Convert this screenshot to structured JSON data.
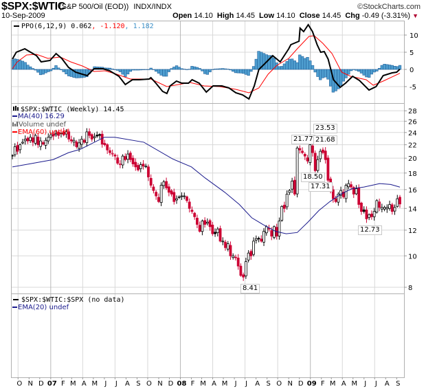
{
  "header": {
    "symbol": "$SPX:$WTIC",
    "description": "(S&P 500/Oil (EOD))",
    "exchange": "INDX/INDX",
    "brand": "©StockCharts.com",
    "date": "10-Sep-2009",
    "open_label": "Open",
    "open": "14.10",
    "high_label": "High",
    "high": "14.45",
    "low_label": "Low",
    "low": "14.10",
    "close_label": "Close",
    "close": "14.45",
    "chg_label": "Chg",
    "chg": "-0.49 (-3.31%)",
    "chg_icon": "down-triangle-icon"
  },
  "ppo_panel": {
    "legend_name": "PPO(6,12,9) 0.062",
    "legend_signal": ", -1.120",
    "legend_hist": ", 1.182",
    "ticks": [
      "10",
      "5",
      "0",
      "-5"
    ]
  },
  "price_panel": {
    "legend_price": "$SPX:$WTIC (Weekly) 14.45",
    "legend_ma": "MA(40) 16.29",
    "legend_volume": "Volume undef",
    "legend_ema": "EMA(60) undef",
    "ticks": [
      "28",
      "26",
      "24",
      "22",
      "20",
      "18",
      "16",
      "14",
      "12",
      "10",
      "8"
    ],
    "annotations": {
      "a1": "23.53",
      "a2": "21.77",
      "a3": "21.68",
      "a4": "18.50",
      "a5": "17.31",
      "a6": "12.73",
      "a7": "8.41"
    }
  },
  "bottom_panel": {
    "legend_ratio": "$SPX:$WTIC:$SPX (no data)",
    "legend_ema": "EMA(20) undef"
  },
  "x_axis": {
    "labels": [
      "O",
      "N",
      "D",
      "07",
      "F",
      "M",
      "A",
      "M",
      "J",
      "J",
      "A",
      "S",
      "O",
      "N",
      "D",
      "08",
      "F",
      "M",
      "A",
      "M",
      "J",
      "J",
      "A",
      "S",
      "O",
      "N",
      "D",
      "09",
      "F",
      "M",
      "A",
      "M",
      "J",
      "J",
      "A",
      "S"
    ]
  },
  "colors": {
    "up": "#000000",
    "down": "#cc0033",
    "ma": "#1a1a8c",
    "signal": "#ff0000",
    "histogram": "#4f9fd0",
    "histogram_edge": "#22609a",
    "grid": "#d8d8d8"
  },
  "chart_data": {
    "type": "candlestick",
    "frequency": "weekly",
    "y_scale": "log",
    "ylim": [
      8,
      28.5
    ],
    "weekly_close": [
      20.4,
      21.7,
      21.0,
      22.0,
      22.4,
      22.9,
      22.6,
      23.2,
      22.4,
      23.5,
      22.0,
      22.6,
      22.1,
      22.7,
      23.2,
      23.6,
      23.4,
      23.8,
      23.5,
      23.9,
      23.6,
      24.1,
      22.9,
      22.6,
      22.7,
      21.7,
      22.3,
      22.9,
      22.4,
      24.1,
      23.5,
      22.9,
      23.3,
      23.4,
      23.5,
      22.1,
      22.0,
      21.2,
      20.8,
      20.7,
      20.3,
      19.3,
      19.2,
      20.3,
      19.8,
      20.6,
      19.8,
      19.2,
      18.8,
      18.4,
      19.1,
      18.9,
      18.9,
      17.5,
      16.5,
      15.9,
      15.3,
      14.7,
      16.5,
      16.9,
      16.2,
      15.7,
      15.5,
      14.7,
      15.0,
      15.2,
      15.3,
      15.3,
      14.8,
      14.0,
      13.7,
      13.2,
      12.5,
      11.9,
      12.8,
      12.5,
      12.7,
      12.3,
      11.7,
      11.7,
      12.1,
      11.1,
      11.1,
      10.6,
      10.9,
      10.0,
      10.0,
      9.9,
      9.3,
      8.7,
      8.6,
      9.6,
      10.2,
      10.0,
      11.1,
      11.3,
      11.3,
      11.1,
      11.9,
      12.3,
      12.1,
      11.5,
      12.3,
      11.5,
      12.8,
      14.2,
      14.0,
      15.5,
      15.9,
      17.0,
      15.5,
      21.5,
      21.2,
      20.8,
      20.3,
      19.6,
      22.0,
      20.8,
      18.3,
      19.8,
      21.0,
      20.8,
      19.8,
      17.1,
      15.9,
      15.0,
      14.7,
      15.5,
      15.9,
      15.2,
      16.5,
      16.7,
      16.3,
      15.5,
      16.1,
      14.4,
      13.7,
      13.7,
      13.0,
      13.4,
      13.2,
      13.7,
      14.8,
      14.1,
      14.1,
      14.1,
      14.1,
      14.4,
      13.7,
      14.1,
      15.0,
      14.45
    ],
    "ma40": [
      [
        "2006-09-15",
        18.8
      ],
      [
        "2006-11-02",
        19.2
      ],
      [
        "2007-01-08",
        19.8
      ],
      [
        "2007-02-20",
        20.8
      ],
      [
        "2007-03-25",
        21.3
      ],
      [
        "2007-06-01",
        23.2
      ],
      [
        "2007-07-01",
        23.2
      ],
      [
        "2007-09-20",
        22.4
      ],
      [
        "2007-12-10",
        19.9
      ],
      [
        "2008-02-01",
        18.8
      ],
      [
        "2008-03-10",
        17.4
      ],
      [
        "2008-05-05",
        15.7
      ],
      [
        "2008-06-15",
        14.4
      ],
      [
        "2008-07-20",
        13.1
      ],
      [
        "2008-08-20",
        12.5
      ],
      [
        "2008-09-25",
        11.9
      ],
      [
        "2008-10-25",
        11.7
      ],
      [
        "2008-11-25",
        11.8
      ],
      [
        "2008-12-25",
        12.7
      ],
      [
        "2009-01-25",
        13.8
      ],
      [
        "2009-02-25",
        14.7
      ],
      [
        "2009-03-28",
        15.5
      ],
      [
        "2009-04-28",
        16.1
      ],
      [
        "2009-06-01",
        16.3
      ],
      [
        "2009-07-15",
        16.7
      ],
      [
        "2009-08-15",
        16.6
      ],
      [
        "2009-09-10",
        16.29
      ]
    ],
    "ppo": [
      [
        "2006-09-15",
        3.0
      ],
      [
        "2006-09-26",
        5.0
      ],
      [
        "2006-10-20",
        6.0
      ],
      [
        "2006-11-02",
        5.2
      ],
      [
        "2006-11-22",
        4.0
      ],
      [
        "2006-12-05",
        2.2
      ],
      [
        "2006-12-30",
        2.6
      ],
      [
        "2007-01-16",
        4.6
      ],
      [
        "2007-02-01",
        3.2
      ],
      [
        "2007-02-20",
        0.6
      ],
      [
        "2007-03-12",
        -0.8
      ],
      [
        "2007-03-31",
        -1.4
      ],
      [
        "2007-04-14",
        -1.8
      ],
      [
        "2007-05-03",
        0.2
      ],
      [
        "2007-05-28",
        0.2
      ],
      [
        "2007-06-16",
        -0.4
      ],
      [
        "2007-07-12",
        -2.0
      ],
      [
        "2007-07-30",
        -4.4
      ],
      [
        "2007-08-19",
        -3.0
      ],
      [
        "2007-09-07",
        -3.0
      ],
      [
        "2007-10-05",
        -2.8
      ],
      [
        "2007-10-10",
        -2.4
      ],
      [
        "2007-10-24",
        -4.0
      ],
      [
        "2007-11-12",
        -6.4
      ],
      [
        "2007-11-24",
        -7.0
      ],
      [
        "2007-12-03",
        -4.8
      ],
      [
        "2007-12-21",
        -3.4
      ],
      [
        "2008-01-05",
        -4.0
      ],
      [
        "2008-01-24",
        -4.0
      ],
      [
        "2008-02-03",
        -3.0
      ],
      [
        "2008-02-23",
        -4.0
      ],
      [
        "2008-03-14",
        -6.6
      ],
      [
        "2008-04-02",
        -4.8
      ],
      [
        "2008-04-27",
        -4.8
      ],
      [
        "2008-05-17",
        -5.4
      ],
      [
        "2008-06-05",
        -6.8
      ],
      [
        "2008-06-24",
        -7.4
      ],
      [
        "2008-07-12",
        -8.6
      ],
      [
        "2008-07-27",
        -4.8
      ],
      [
        "2008-08-09",
        0.0
      ],
      [
        "2008-08-21",
        1.2
      ],
      [
        "2008-09-17",
        4.0
      ],
      [
        "2008-10-08",
        2.2
      ],
      [
        "2008-11-01",
        6.0
      ],
      [
        "2008-11-07",
        7.2
      ],
      [
        "2008-11-30",
        8.2
      ],
      [
        "2008-12-03",
        12.0
      ],
      [
        "2008-12-13",
        11.0
      ],
      [
        "2008-12-26",
        13.0
      ],
      [
        "2009-01-07",
        11.0
      ],
      [
        "2009-01-20",
        7.2
      ],
      [
        "2009-01-30",
        5.0
      ],
      [
        "2009-02-09",
        5.2
      ],
      [
        "2009-02-20",
        3.0
      ],
      [
        "2009-03-07",
        -3.0
      ],
      [
        "2009-03-26",
        -5.2
      ],
      [
        "2009-04-10",
        -4.0
      ],
      [
        "2009-04-30",
        -2.0
      ],
      [
        "2009-05-19",
        -3.2
      ],
      [
        "2009-06-15",
        -6.0
      ],
      [
        "2009-07-05",
        -5.0
      ],
      [
        "2009-07-25",
        -1.8
      ],
      [
        "2009-08-19",
        -1.0
      ],
      [
        "2009-09-01",
        -0.8
      ],
      [
        "2009-09-10",
        0.062
      ]
    ],
    "ppo_signal": [
      [
        "2006-09-15",
        0.2
      ],
      [
        "2006-09-29",
        2.2
      ],
      [
        "2006-10-25",
        4.2
      ],
      [
        "2006-11-22",
        4.4
      ],
      [
        "2006-12-24",
        3.2
      ],
      [
        "2007-01-28",
        3.6
      ],
      [
        "2007-02-26",
        2.2
      ],
      [
        "2007-03-31",
        1.0
      ],
      [
        "2007-05-03",
        -0.6
      ],
      [
        "2007-06-03",
        -0.4
      ],
      [
        "2007-07-06",
        -1.4
      ],
      [
        "2007-08-13",
        -2.8
      ],
      [
        "2007-09-21",
        -2.8
      ],
      [
        "2007-10-10",
        -2.8
      ],
      [
        "2007-11-24",
        -5.0
      ],
      [
        "2007-12-27",
        -4.4
      ],
      [
        "2008-01-28",
        -3.8
      ],
      [
        "2008-03-08",
        -4.8
      ],
      [
        "2008-04-21",
        -5.0
      ],
      [
        "2008-06-05",
        -5.8
      ],
      [
        "2008-07-12",
        -6.8
      ],
      [
        "2008-08-09",
        -5.4
      ],
      [
        "2008-09-04",
        -1.4
      ],
      [
        "2008-09-29",
        1.2
      ],
      [
        "2008-11-01",
        3.2
      ],
      [
        "2008-11-25",
        6.0
      ],
      [
        "2008-12-28",
        9.6
      ],
      [
        "2009-01-12",
        9.8
      ],
      [
        "2009-02-05",
        7.6
      ],
      [
        "2009-03-03",
        4.6
      ],
      [
        "2009-03-30",
        -0.8
      ],
      [
        "2009-04-24",
        -2.0
      ],
      [
        "2009-06-07",
        -3.0
      ],
      [
        "2009-06-27",
        -4.6
      ],
      [
        "2009-07-25",
        -3.4
      ],
      [
        "2009-09-10",
        -1.12
      ]
    ],
    "ppo_ylim": [
      -9,
      14
    ]
  }
}
